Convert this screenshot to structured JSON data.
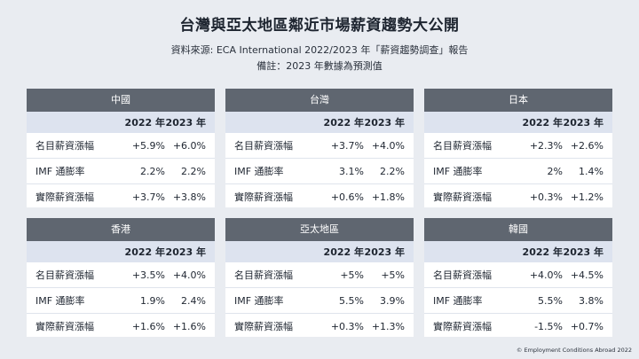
{
  "title": "台灣與亞太地區鄰近市場薪資趨勢大公開",
  "subtitle": "資料來源: ECA International 2022/2023 年「薪資趨勢調查」報告",
  "note": "備註：2023 年數據為預測值",
  "col_headers": [
    "2022 年",
    "2023 年"
  ],
  "row_labels": [
    "名目薪資漲幅",
    "IMF 通膨率",
    "實際薪資漲幅"
  ],
  "cards": [
    {
      "region": "中國",
      "rows": [
        [
          "+5.9%",
          "+6.0%"
        ],
        [
          "2.2%",
          "2.2%"
        ],
        [
          "+3.7%",
          "+3.8%"
        ]
      ]
    },
    {
      "region": "台灣",
      "rows": [
        [
          "+3.7%",
          "+4.0%"
        ],
        [
          "3.1%",
          "2.2%"
        ],
        [
          "+0.6%",
          "+1.8%"
        ]
      ]
    },
    {
      "region": "日本",
      "rows": [
        [
          "+2.3%",
          "+2.6%"
        ],
        [
          "2%",
          "1.4%"
        ],
        [
          "+0.3%",
          "+1.2%"
        ]
      ]
    },
    {
      "region": "香港",
      "rows": [
        [
          "+3.5%",
          "+4.0%"
        ],
        [
          "1.9%",
          "2.4%"
        ],
        [
          "+1.6%",
          "+1.6%"
        ]
      ]
    },
    {
      "region": "亞太地區",
      "rows": [
        [
          "+5%",
          "+5%"
        ],
        [
          "5.5%",
          "3.9%"
        ],
        [
          "+0.3%",
          "+1.3%"
        ]
      ]
    },
    {
      "region": "韓國",
      "rows": [
        [
          "+4.0%",
          "+4.5%"
        ],
        [
          "5.5%",
          "3.8%"
        ],
        [
          "-1.5%",
          "+0.7%"
        ]
      ]
    }
  ],
  "copyright": "© Employment Conditions Abroad 2022"
}
